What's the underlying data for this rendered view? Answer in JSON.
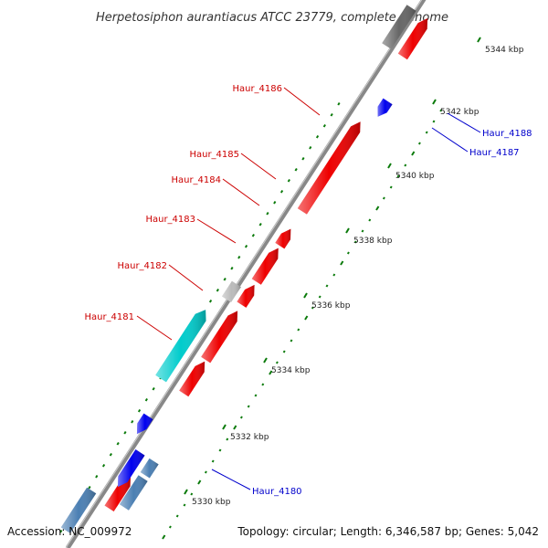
{
  "title": "Herpetosiphon aurantiacus ATCC 23779, complete genome",
  "accession": "Accession: NC_009972",
  "summary": "Topology: circular; Length: 6,346,587 bp; Genes: 5,042",
  "colors": {
    "forward_cds": "#ee0000",
    "reverse_cds": "#0000ee",
    "rna_gene": "#00cccc",
    "other_feature": "#4b7fb3",
    "pseudogene": "#bbbbbb",
    "dark_feature": "#666666",
    "backbone": "#888888",
    "tick_green": "#0a7a0a",
    "label_forward": "#cc0000",
    "label_reverse": "#0000cc"
  },
  "ticks": [
    {
      "label": "5330 kbp"
    },
    {
      "label": "5332 kbp"
    },
    {
      "label": "5334 kbp"
    },
    {
      "label": "5336 kbp"
    },
    {
      "label": "5338 kbp"
    },
    {
      "label": "5340 kbp"
    },
    {
      "label": "5342 kbp"
    },
    {
      "label": "5344 kbp"
    }
  ],
  "gene_labels": [
    {
      "name": "Haur_4180",
      "strand": "reverse"
    },
    {
      "name": "Haur_4181",
      "strand": "forward"
    },
    {
      "name": "Haur_4182",
      "strand": "forward"
    },
    {
      "name": "Haur_4183",
      "strand": "forward"
    },
    {
      "name": "Haur_4184",
      "strand": "forward"
    },
    {
      "name": "Haur_4185",
      "strand": "forward"
    },
    {
      "name": "Haur_4186",
      "strand": "forward"
    },
    {
      "name": "Haur_4187",
      "strand": "reverse"
    },
    {
      "name": "Haur_4188",
      "strand": "reverse"
    }
  ]
}
